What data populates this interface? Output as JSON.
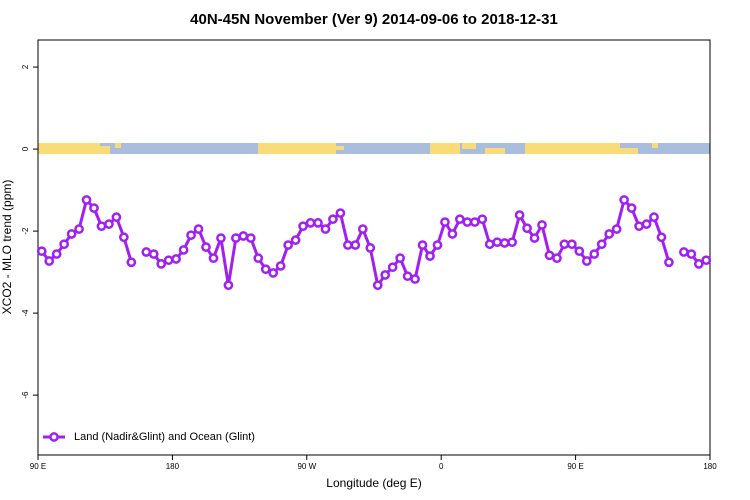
{
  "chart_data": {
    "type": "line",
    "title": "40N-45N November (Ver 9)   2014-09-06 to 2018-12-31",
    "x_label": "Longitude (deg E)",
    "y_label": "XCO2 - MLO trend (ppm)",
    "xlim": [
      90,
      540
    ],
    "xticks": [
      {
        "value": 90,
        "label": "90 E"
      },
      180,
      {
        "value": 270,
        "label": "90 W"
      },
      {
        "value": 360,
        "label": "0"
      },
      {
        "value": 450,
        "label": "90 E"
      },
      {
        "value": 540,
        "label": "180"
      }
    ],
    "ylim": [
      -7.46,
      2.66
    ],
    "yticks": [
      -6,
      -4,
      -2,
      0,
      2
    ],
    "legend": "bottomleft",
    "x": [
      92.5,
      97.5,
      102.5,
      107.5,
      112.5,
      117.5,
      122.5,
      127.5,
      132.5,
      137.5,
      142.5,
      147.5,
      152.5,
      157.5,
      162.5,
      167.5,
      172.5,
      177.5,
      182.5,
      187.5,
      192.5,
      197.5,
      202.5,
      207.5,
      212.5,
      217.5,
      222.5,
      227.5,
      232.5,
      237.5,
      242.5,
      247.5,
      252.5,
      257.5,
      262.5,
      267.5,
      272.5,
      277.5,
      282.5,
      287.5,
      292.5,
      297.5,
      302.5,
      307.5,
      312.5,
      317.5,
      322.5,
      327.5,
      332.5,
      337.5,
      342.5,
      347.5,
      352.5,
      357.5,
      362.5,
      367.5,
      372.5,
      377.5,
      382.5,
      387.5,
      392.5,
      397.5,
      402.5,
      407.5,
      412.5,
      417.5,
      422.5,
      427.5,
      432.5,
      437.5,
      442.5,
      447.5,
      452.5,
      457.5,
      462.5,
      467.5,
      472.5,
      477.5,
      482.5,
      487.5,
      492.5,
      497.5,
      502.5,
      507.5,
      512.5,
      517.5,
      522.5,
      527.5,
      532.5,
      537.5
    ],
    "series": [
      {
        "name": "Land (Nadir&Glint) and Ocean (Glint)",
        "color": "#a020f0",
        "values": [
          -2.49,
          -2.73,
          -2.56,
          -2.32,
          -2.07,
          -1.95,
          -1.24,
          -1.44,
          -1.88,
          -1.83,
          -1.66,
          -2.15,
          -2.76,
          null,
          -2.51,
          -2.56,
          -2.8,
          -2.71,
          -2.68,
          -2.46,
          -2.1,
          -1.95,
          -2.39,
          -2.66,
          -2.17,
          -3.32,
          -2.17,
          -2.12,
          -2.17,
          -2.66,
          -2.93,
          -3.02,
          -2.85,
          -2.34,
          -2.22,
          -1.88,
          -1.8,
          -1.8,
          -1.95,
          -1.71,
          -1.56,
          -2.34,
          -2.34,
          -1.95,
          -2.41,
          -3.32,
          -3.07,
          -2.88,
          -2.66,
          -3.1,
          -3.17,
          -2.34,
          -2.61,
          -2.34,
          -1.78,
          -2.07,
          -1.71,
          -1.78,
          -1.78,
          -1.71,
          -2.32,
          -2.27,
          -2.29,
          -2.27,
          -1.61,
          -1.93,
          -2.17,
          -1.85,
          -2.59,
          -2.66,
          -2.32,
          -2.32,
          -2.49,
          -2.73,
          -2.56,
          -2.32,
          -2.07,
          -1.95,
          -1.24,
          -1.44,
          -1.88,
          -1.83,
          -1.66,
          -2.15,
          -2.76,
          null,
          -2.51,
          -2.56,
          -2.8,
          -2.71
        ]
      }
    ]
  }
}
